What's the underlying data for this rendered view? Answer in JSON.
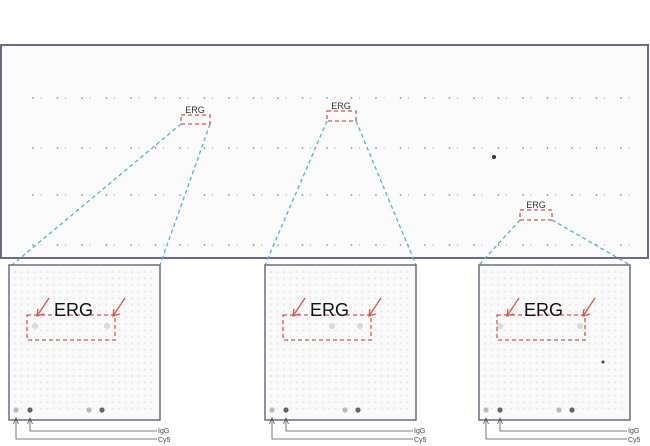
{
  "figure": {
    "main_labels": [
      "ERG",
      "ERG",
      "ERG"
    ],
    "insets": [
      {
        "label": "ERG",
        "igg_label": "IgG",
        "cy5_label": "Cy5"
      },
      {
        "label": "ERG",
        "igg_label": "IgG",
        "cy5_label": "Cy5"
      },
      {
        "label": "ERG",
        "igg_label": "IgG",
        "cy5_label": "Cy5"
      }
    ]
  },
  "colors": {
    "frame": "#6a6a8a",
    "highlight": "#e0504a",
    "zoom_line": "#4fb3d9",
    "spot": "#8a8a8a"
  }
}
